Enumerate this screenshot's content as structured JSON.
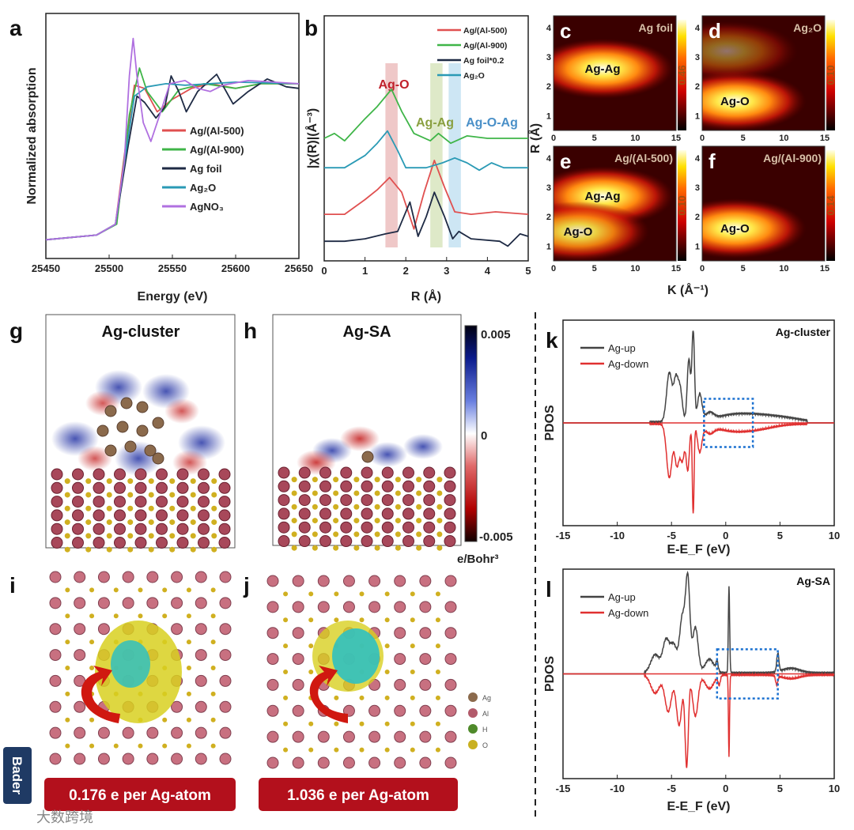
{
  "panels": {
    "a": "a",
    "b": "b",
    "c": "c",
    "d": "d",
    "e": "e",
    "f": "f",
    "g": "g",
    "h": "h",
    "i": "i",
    "j": "j",
    "k": "k",
    "l": "l"
  },
  "structure": {
    "g_title": "Ag-cluster",
    "h_title": "Ag-SA",
    "colorbar_max": "0.005",
    "colorbar_mid": "0",
    "colorbar_min": "-0.005",
    "colorbar_unit": "e/Bohr³",
    "bader_label": "Bader",
    "i_charge": "0.176 e per Ag-atom",
    "j_charge": "1.036 e per Ag-atom",
    "atom_legend": [
      {
        "label": "Ag",
        "color": "#8b6a4c"
      },
      {
        "label": "Al",
        "color": "#b25a6a"
      },
      {
        "label": "H",
        "color": "#4f8a2a"
      },
      {
        "label": "O",
        "color": "#c9b020"
      }
    ],
    "density_colors": {
      "positive": "#0a1a8c",
      "negative": "#8c0a0a",
      "iso_yellow": "#d8d020",
      "iso_cyan": "#30c0c0",
      "arrow": "#d01810"
    },
    "bar_color": "#b3101c"
  },
  "watermark": "大数跨境",
  "chart_data": [
    {
      "id": "a",
      "type": "line",
      "xlabel": "Energy (eV)",
      "ylabel": "Normalized absorption",
      "xlim": [
        25450,
        25650
      ],
      "ylim": [
        -0.12,
        1.45
      ],
      "xticks": [
        "25450",
        "25500",
        "25550",
        "25600",
        "25650"
      ],
      "legend_position": "center-right",
      "series": [
        {
          "name": "Ag/(Al-500)",
          "color": "#e05050",
          "x": [
            25450,
            25490,
            25505,
            25513,
            25520,
            25528,
            25538,
            25550,
            25565,
            25580,
            25600,
            25620,
            25650
          ],
          "y": [
            0,
            0.03,
            0.1,
            0.6,
            0.99,
            0.97,
            0.82,
            0.9,
            0.97,
            1.0,
            0.97,
            1.0,
            1.0
          ]
        },
        {
          "name": "Ag/(Al-900)",
          "color": "#3fb548",
          "x": [
            25450,
            25490,
            25506,
            25516,
            25524,
            25530,
            25542,
            25555,
            25575,
            25600,
            25620,
            25650
          ],
          "y": [
            0,
            0.03,
            0.1,
            0.8,
            1.1,
            0.95,
            0.82,
            0.96,
            1.0,
            0.97,
            1.0,
            1.0
          ]
        },
        {
          "name": "Ag foil",
          "color": "#1e2a44",
          "x": [
            25450,
            25490,
            25505,
            25515,
            25522,
            25528,
            25537,
            25544,
            25549,
            25555,
            25561,
            25570,
            25585,
            25598,
            25610,
            25625,
            25640,
            25650
          ],
          "y": [
            0,
            0.03,
            0.1,
            0.6,
            0.92,
            0.88,
            0.78,
            0.85,
            1.05,
            0.95,
            0.82,
            0.95,
            1.06,
            0.87,
            0.95,
            1.03,
            0.98,
            0.97
          ]
        },
        {
          "name": "Ag₂O",
          "color": "#2a9ab5",
          "x": [
            25450,
            25490,
            25505,
            25514,
            25520,
            25530,
            25545,
            25560,
            25600,
            25650
          ],
          "y": [
            0,
            0.03,
            0.1,
            0.6,
            0.92,
            0.98,
            1.0,
            0.99,
            1.01,
            1.0
          ]
        },
        {
          "name": "AgNO₃",
          "color": "#b070e0",
          "x": [
            25450,
            25490,
            25505,
            25512,
            25516,
            25519,
            25522,
            25527,
            25533,
            25540,
            25548,
            25560,
            25570,
            25580,
            25590,
            25610,
            25650
          ],
          "y": [
            0,
            0.03,
            0.1,
            0.5,
            1.05,
            1.29,
            1.05,
            0.75,
            0.63,
            0.8,
            1.0,
            1.02,
            0.97,
            0.95,
            0.99,
            1.02,
            1.0
          ]
        }
      ]
    },
    {
      "id": "b",
      "type": "line",
      "xlabel": "R (Å)",
      "ylabel": "|χ(R)|(Å⁻³)",
      "xlim": [
        0,
        5
      ],
      "ylim": [
        0,
        10
      ],
      "xticks": [
        "0",
        "1",
        "2",
        "3",
        "4",
        "5"
      ],
      "legend_position": "top-right",
      "annotations": [
        {
          "text": "Ag-O",
          "color": "#c0202a",
          "band": [
            1.5,
            1.8
          ],
          "band_color": "#e8b0b0"
        },
        {
          "text": "Ag-Ag",
          "color": "#8aa040",
          "band": [
            2.6,
            2.9
          ],
          "band_color": "#d0e0b0"
        },
        {
          "text": "Ag-O-Ag",
          "color": "#4a90c8",
          "band": [
            3.05,
            3.35
          ],
          "band_color": "#b8dcef"
        }
      ],
      "series": [
        {
          "name": "Ag/(Al-500)",
          "color": "#e05050",
          "x": [
            0,
            0.5,
            1.0,
            1.3,
            1.6,
            1.9,
            2.2,
            2.45,
            2.7,
            2.95,
            3.2,
            3.6,
            4.2,
            5
          ],
          "y": [
            1.9,
            1.9,
            2.5,
            2.9,
            3.4,
            2.8,
            1.3,
            2.8,
            4.1,
            3.0,
            2.0,
            1.9,
            2.0,
            1.9
          ]
        },
        {
          "name": "Ag/(Al-900)",
          "color": "#3fb548",
          "x": [
            0,
            0.25,
            0.5,
            1.0,
            1.3,
            1.65,
            1.9,
            2.2,
            2.6,
            2.8,
            3.1,
            3.5,
            4.0,
            5
          ],
          "y": [
            5.0,
            5.2,
            4.9,
            5.8,
            6.3,
            7.0,
            6.1,
            5.2,
            4.9,
            5.2,
            4.8,
            5.1,
            5.0,
            5.0
          ]
        },
        {
          "name": "Ag foil*0.2",
          "color": "#1e2a44",
          "x": [
            0,
            0.5,
            1.0,
            1.5,
            1.8,
            2.1,
            2.3,
            2.5,
            2.7,
            2.95,
            3.15,
            3.3,
            3.6,
            4.3,
            4.5,
            4.8,
            5
          ],
          "y": [
            0.8,
            0.8,
            0.9,
            1.1,
            1.2,
            2.4,
            1.0,
            1.8,
            2.8,
            1.8,
            0.9,
            1.2,
            0.9,
            0.8,
            0.6,
            1.1,
            1.0
          ]
        },
        {
          "name": "Ag₂O",
          "color": "#2a9ab5",
          "x": [
            0,
            0.5,
            1.0,
            1.3,
            1.55,
            1.8,
            2.0,
            2.5,
            2.9,
            3.2,
            3.5,
            3.8,
            4.1,
            4.4,
            5
          ],
          "y": [
            3.8,
            3.8,
            4.3,
            4.8,
            5.3,
            4.5,
            3.8,
            3.8,
            4.0,
            4.2,
            4.0,
            3.7,
            4.0,
            3.8,
            3.8
          ]
        }
      ]
    },
    {
      "id": "c",
      "type": "heatmap",
      "title": "Ag foil",
      "xlabel": "K (Å⁻¹)",
      "ylabel": "R (Å)",
      "xlim": [
        0,
        15
      ],
      "ylim": [
        0.5,
        4.4
      ],
      "colorbar_max": "0.46",
      "xticks": [
        "0",
        "5",
        "10",
        "15"
      ],
      "yticks": [
        "1",
        "2",
        "3",
        "4"
      ],
      "features": [
        {
          "label": "Ag-Ag",
          "k": 6,
          "R": 2.6,
          "intensity": 1.0
        }
      ]
    },
    {
      "id": "d",
      "type": "heatmap",
      "title": "Ag₂O",
      "xlabel": "K (Å⁻¹)",
      "ylabel": "R (Å)",
      "xlim": [
        0,
        15
      ],
      "ylim": [
        0.5,
        4.4
      ],
      "colorbar_max": "0.10",
      "xticks": [
        "0",
        "5",
        "10",
        "15"
      ],
      "yticks": [
        "1",
        "2",
        "3",
        "4"
      ],
      "features": [
        {
          "label": "Ag-O",
          "k": 4,
          "R": 1.5,
          "intensity": 1.0
        },
        {
          "label": "",
          "k": 3,
          "R": 3.2,
          "intensity": 0.45
        }
      ]
    },
    {
      "id": "e",
      "type": "heatmap",
      "title": "Ag/(Al-500)",
      "xlabel": "K (Å⁻¹)",
      "ylabel": "R (Å)",
      "xlim": [
        0,
        15
      ],
      "ylim": [
        0.5,
        4.4
      ],
      "colorbar_max": "0.10",
      "xticks": [
        "0",
        "5",
        "10",
        "15"
      ],
      "yticks": [
        "1",
        "2",
        "3",
        "4"
      ],
      "features": [
        {
          "label": "Ag-Ag",
          "k": 6,
          "R": 2.7,
          "intensity": 1.0
        },
        {
          "label": "Ag-O",
          "k": 3,
          "R": 1.5,
          "intensity": 0.9
        }
      ]
    },
    {
      "id": "f",
      "type": "heatmap",
      "title": "Ag/(Al-900)",
      "xlabel": "K (Å⁻¹)",
      "ylabel": "R (Å)",
      "xlim": [
        0,
        15
      ],
      "ylim": [
        0.5,
        4.4
      ],
      "colorbar_max": "0.14",
      "xticks": [
        "0",
        "5",
        "10",
        "15"
      ],
      "yticks": [
        "1",
        "2",
        "3",
        "4"
      ],
      "features": [
        {
          "label": "Ag-O",
          "k": 4,
          "R": 1.6,
          "intensity": 1.0
        }
      ]
    },
    {
      "id": "k",
      "type": "line",
      "title": "Ag-cluster",
      "xlabel": "E-E_F (eV)",
      "ylabel": "PDOS",
      "xlim": [
        -15,
        10
      ],
      "ylim": [
        -1.15,
        1.15
      ],
      "xticks": [
        "-15",
        "-10",
        "-5",
        "0",
        "5",
        "10"
      ],
      "legend_position": "top-left",
      "highlight_box": [
        -2,
        2.5
      ],
      "series": [
        {
          "name": "Ag-up",
          "color": "#444444",
          "peaks": [
            [
              -5.2,
              0.55,
              0.25
            ],
            [
              -4.6,
              0.45,
              0.2
            ],
            [
              -4.2,
              0.35,
              0.2
            ],
            [
              -3.4,
              0.7,
              0.15
            ],
            [
              -3.0,
              1.0,
              0.12
            ],
            [
              -2.4,
              0.3,
              0.2
            ],
            [
              -1.5,
              0.08,
              0.4
            ],
            [
              0.5,
              0.07,
              1.5
            ],
            [
              3,
              0.06,
              1.5
            ],
            [
              5.5,
              0.04,
              1.5
            ]
          ],
          "range": [
            -7,
            7.5
          ]
        },
        {
          "name": "Ag-down",
          "color": "#e03030",
          "peaks": [
            [
              -5.2,
              -0.6,
              0.25
            ],
            [
              -4.5,
              -0.45,
              0.2
            ],
            [
              -4.0,
              -0.4,
              0.2
            ],
            [
              -3.5,
              -0.5,
              0.15
            ],
            [
              -3.0,
              -1.0,
              0.08
            ],
            [
              -2.4,
              -0.3,
              0.2
            ],
            [
              -1.5,
              -0.08,
              0.4
            ],
            [
              0.5,
              -0.07,
              1.5
            ],
            [
              3,
              -0.05,
              1.5
            ]
          ],
          "range": [
            -7,
            7.5
          ]
        }
      ]
    },
    {
      "id": "l",
      "type": "line",
      "title": "Ag-SA",
      "xlabel": "E-E_F (eV)",
      "ylabel": "PDOS",
      "xlim": [
        -15,
        10
      ],
      "ylim": [
        -1.15,
        1.15
      ],
      "xticks": [
        "-15",
        "-10",
        "-5",
        "0",
        "5",
        "10"
      ],
      "legend_position": "top-left",
      "highlight_box": [
        -0.8,
        4.8
      ],
      "series": [
        {
          "name": "Ag-up",
          "color": "#444444",
          "peaks": [
            [
              -6.5,
              0.2,
              0.4
            ],
            [
              -5.5,
              0.35,
              0.3
            ],
            [
              -4.8,
              0.3,
              0.3
            ],
            [
              -4.0,
              0.6,
              0.25
            ],
            [
              -3.5,
              1.0,
              0.2
            ],
            [
              -2.8,
              0.5,
              0.25
            ],
            [
              -1.5,
              0.15,
              0.4
            ],
            [
              -0.8,
              0.1,
              0.1
            ],
            [
              0.3,
              0.95,
              0.06
            ],
            [
              4.8,
              0.2,
              0.1
            ],
            [
              6,
              0.05,
              0.8
            ]
          ],
          "range": [
            -7.5,
            10
          ]
        },
        {
          "name": "Ag-down",
          "color": "#e03030",
          "peaks": [
            [
              -6.5,
              -0.2,
              0.4
            ],
            [
              -5.3,
              -0.4,
              0.3
            ],
            [
              -4.3,
              -0.55,
              0.25
            ],
            [
              -3.6,
              -1.0,
              0.15
            ],
            [
              -2.8,
              -0.45,
              0.25
            ],
            [
              -1.5,
              -0.15,
              0.4
            ],
            [
              -0.6,
              -0.1,
              0.1
            ],
            [
              0.3,
              -0.9,
              0.05
            ],
            [
              4.7,
              -0.1,
              0.1
            ],
            [
              6,
              -0.04,
              0.8
            ]
          ],
          "range": [
            -7.5,
            10
          ]
        }
      ]
    }
  ]
}
